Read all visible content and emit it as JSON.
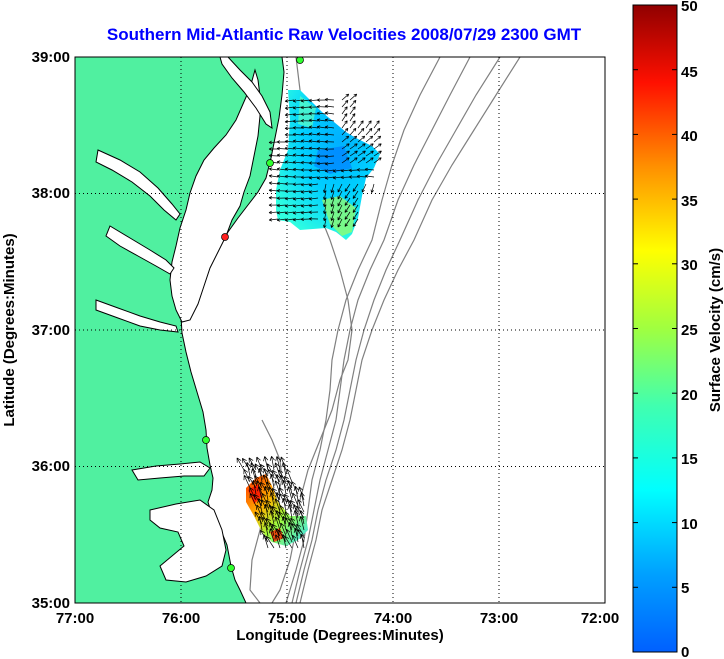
{
  "title": "Southern Mid-Atlantic Raw Velocities 2008/07/29 2300 GMT",
  "axes": {
    "xlabel": "Longitude (Degrees:Minutes)",
    "ylabel": "Latitude (Degrees:Minutes)",
    "x_ticks": [
      "77:00",
      "76:00",
      "75:00",
      "74:00",
      "73:00",
      "72:00"
    ],
    "y_ticks": [
      "39:00",
      "38:00",
      "37:00",
      "36:00",
      "35:00"
    ],
    "x_range": [
      -77,
      -72
    ],
    "y_range": [
      35,
      39
    ],
    "grid": true
  },
  "colorbar": {
    "label": "Surface Velocity (cm/s)",
    "range": [
      0,
      50
    ],
    "ticks": [
      "50",
      "45",
      "40",
      "35",
      "30",
      "25",
      "20",
      "15",
      "10",
      "5",
      "0"
    ]
  },
  "colors": {
    "land": "#50f0a0",
    "sea": "#ffffff",
    "title": "#0000ff",
    "bathymetry": "#808080",
    "coast": "#000000"
  },
  "chart_data": {
    "type": "other",
    "stations": [
      {
        "lon": -74.87,
        "lat": 38.98,
        "status": "active"
      },
      {
        "lon": -75.15,
        "lat": 38.23,
        "status": "active"
      },
      {
        "lon": -75.55,
        "lat": 37.69,
        "status": "offline"
      },
      {
        "lon": -75.8,
        "lat": 36.17,
        "status": "active"
      },
      {
        "lon": -75.5,
        "lat": 35.25,
        "status": "active"
      }
    ],
    "velocity_fields": [
      {
        "region": "north",
        "lon_range": [
          -75.0,
          -74.1
        ],
        "lat_range": [
          37.7,
          38.85
        ],
        "speed_range_cm_s": [
          5,
          20
        ]
      },
      {
        "region": "south",
        "lon_range": [
          -75.4,
          -74.75
        ],
        "lat_range": [
          35.45,
          36.05
        ],
        "speed_range_cm_s": [
          15,
          45
        ]
      }
    ]
  }
}
